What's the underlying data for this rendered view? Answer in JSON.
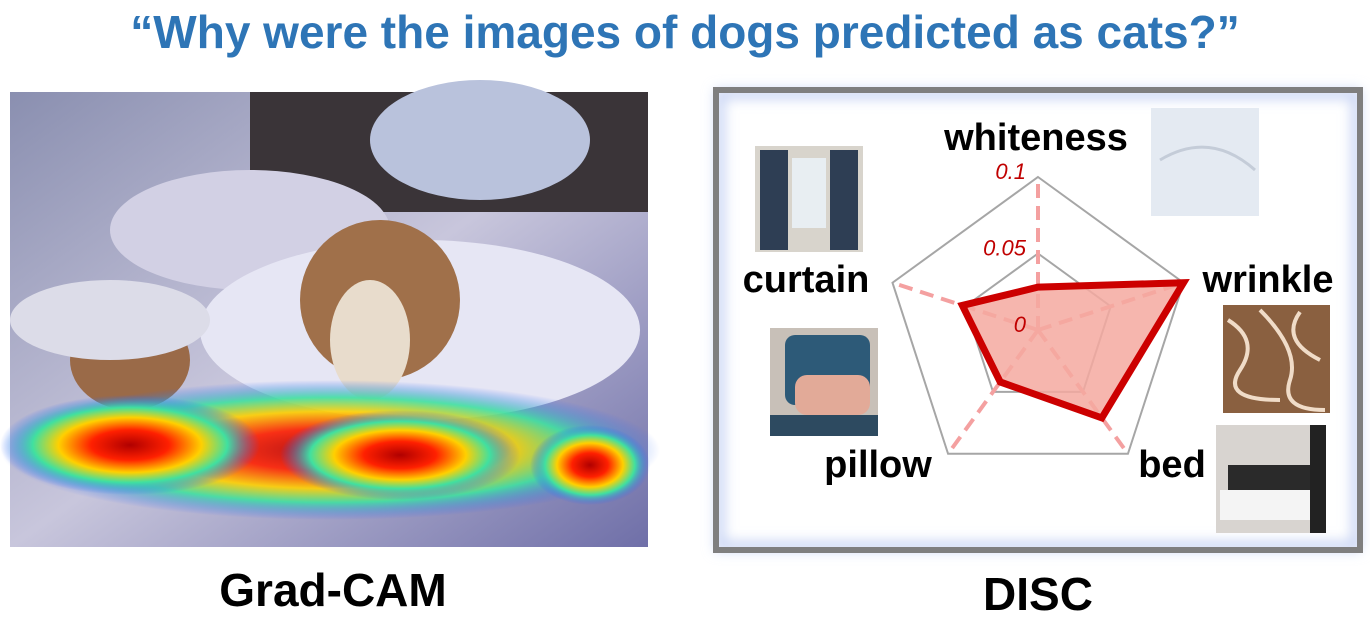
{
  "title": "“Why were the images of dogs predicted as cats?”",
  "left_caption": "Grad-CAM",
  "chart_data": {
    "type": "radar",
    "caption": "DISC",
    "categories": [
      "whiteness",
      "wrinkle",
      "bed",
      "pillow",
      "curtain"
    ],
    "values": [
      0.028,
      0.1,
      0.071,
      0.042,
      0.052
    ],
    "color": "#cc0000",
    "fill": "#f4a9a0",
    "rlim": [
      0,
      0.1
    ],
    "rticks": [
      0,
      0.05,
      0.1
    ],
    "grid": true
  }
}
